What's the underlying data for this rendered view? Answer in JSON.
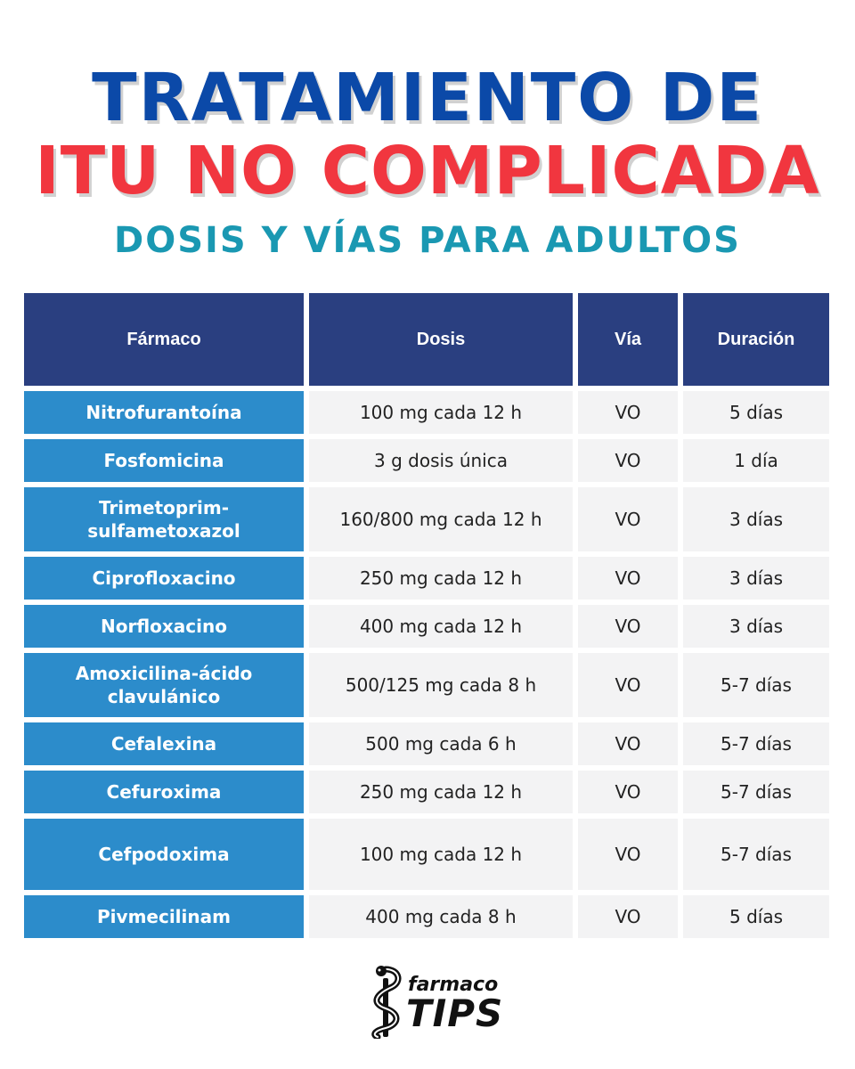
{
  "header": {
    "title_line1": "TRATAMIENTO DE",
    "title_line2": "ITU NO COMPLICADA",
    "subtitle": "DOSIS Y VÍAS PARA ADULTOS"
  },
  "table": {
    "columns": [
      "Fármaco",
      "Dosis",
      "Vía",
      "Duración"
    ],
    "rows": [
      {
        "farmaco_l1": "Nitrofurantoína",
        "farmaco_l2": "",
        "dosis": "100 mg cada 12 h",
        "via": "VO",
        "duracion": "5 días"
      },
      {
        "farmaco_l1": "Fosfomicina",
        "farmaco_l2": "",
        "dosis": "3 g dosis única",
        "via": "VO",
        "duracion": "1 día"
      },
      {
        "farmaco_l1": "Trimetoprim-",
        "farmaco_l2": "sulfametoxazol",
        "dosis": "160/800 mg cada 12 h",
        "via": "VO",
        "duracion": "3 días"
      },
      {
        "farmaco_l1": "Ciprofloxacino",
        "farmaco_l2": "",
        "dosis": "250 mg cada 12 h",
        "via": "VO",
        "duracion": "3 días"
      },
      {
        "farmaco_l1": "Norfloxacino",
        "farmaco_l2": "",
        "dosis": "400 mg cada 12 h",
        "via": "VO",
        "duracion": "3 días"
      },
      {
        "farmaco_l1": "Amoxicilina-ácido",
        "farmaco_l2": "clavulánico",
        "dosis": "500/125 mg cada 8 h",
        "via": "VO",
        "duracion": "5-7 días"
      },
      {
        "farmaco_l1": "Cefalexina",
        "farmaco_l2": "",
        "dosis": "500 mg cada 6 h",
        "via": "VO",
        "duracion": "5-7 días"
      },
      {
        "farmaco_l1": "Cefuroxima",
        "farmaco_l2": "",
        "dosis": "250 mg cada 12 h",
        "via": "VO",
        "duracion": "5-7 días"
      },
      {
        "farmaco_l1": "Cefpodoxima",
        "farmaco_l2": "",
        "dosis": "100 mg cada 12 h",
        "via": "VO",
        "duracion": "5-7 días"
      },
      {
        "farmaco_l1": "Pivmecilinam",
        "farmaco_l2": "",
        "dosis": "400 mg cada 8 h",
        "via": "VO",
        "duracion": "5 días"
      }
    ]
  },
  "logo": {
    "text_small": "farmaco",
    "text_big": "TIPS",
    "icon": "snake-staff-icon"
  },
  "colors": {
    "title_blue": "#0b49a8",
    "title_red": "#f1363f",
    "subtitle_teal": "#1a98b2",
    "header_navy": "#2a3f80",
    "drug_blue": "#2c8ccb",
    "value_gray": "#f3f3f4"
  }
}
